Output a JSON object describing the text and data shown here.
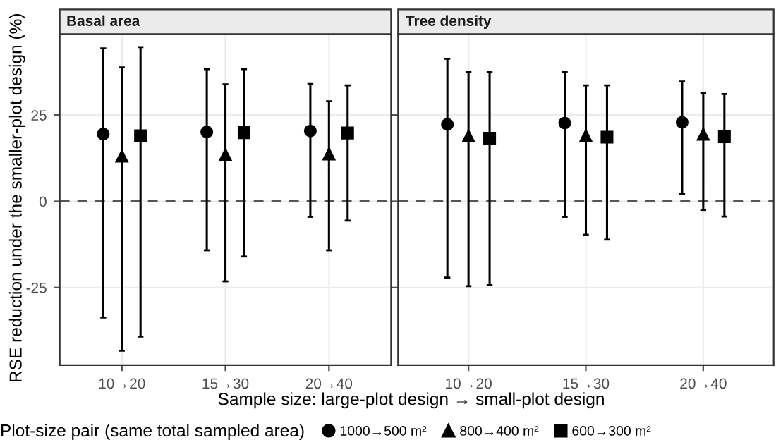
{
  "chart_data": [
    {
      "type": "scatter",
      "title": "Basal area",
      "ylabel": "RSE reduction under the smaller-plot design (%)",
      "xlabel": "Sample size: large-plot design → small-plot design",
      "legend_title": "Plot-size pair (same total sampled area)",
      "legend": "bottom",
      "grid": true,
      "categories": [
        "10→20",
        "15→30",
        "20→40"
      ],
      "ylim": [
        -47.5,
        48.4
      ],
      "yticks": [
        -25,
        0,
        25
      ],
      "ref_lines": [
        {
          "axis": "y",
          "value": 0,
          "line_style": "dashed",
          "color": "#555555"
        }
      ],
      "series": [
        {
          "name": "1000→500 m²",
          "color": "#000000",
          "marker": "circle",
          "values": [
            19.5,
            20.1,
            20.4
          ],
          "errors": [
            [
              -33.7,
              44.3
            ],
            [
              -14.2,
              38.3
            ],
            [
              -4.5,
              34.0
            ]
          ]
        },
        {
          "name": "800→400 m²",
          "color": "#000000",
          "marker": "triangle",
          "values": [
            13.1,
            13.5,
            13.7
          ],
          "errors": [
            [
              -43.3,
              38.8
            ],
            [
              -23.2,
              33.9
            ],
            [
              -14.2,
              29.0
            ]
          ]
        },
        {
          "name": "600→300 m²",
          "color": "#000000",
          "marker": "square",
          "values": [
            19.0,
            19.9,
            19.8
          ],
          "errors": [
            [
              -39.2,
              44.7
            ],
            [
              -16.0,
              38.3
            ],
            [
              -5.6,
              33.6
            ]
          ]
        }
      ]
    },
    {
      "type": "scatter",
      "title": "Tree density",
      "grid": true,
      "tick_labels": "x",
      "categories": [
        "10→20",
        "15→30",
        "20→40"
      ],
      "ylim": [
        -47.5,
        48.4
      ],
      "yticks": [
        -25,
        0,
        25
      ],
      "ref_lines": [
        {
          "axis": "y",
          "value": 0,
          "line_style": "dashed",
          "color": "#555555"
        }
      ],
      "series": [
        {
          "color": "#000000",
          "marker": "circle",
          "values": [
            22.3,
            22.7,
            22.9
          ],
          "errors": [
            [
              -22.1,
              41.3
            ],
            [
              -4.5,
              37.4
            ],
            [
              2.2,
              34.7
            ]
          ]
        },
        {
          "color": "#000000",
          "marker": "triangle",
          "values": [
            18.9,
            19.0,
            19.4
          ],
          "errors": [
            [
              -24.6,
              37.4
            ],
            [
              -9.7,
              33.6
            ],
            [
              -2.5,
              31.4
            ]
          ]
        },
        {
          "color": "#000000",
          "marker": "square",
          "values": [
            18.3,
            18.6,
            18.7
          ],
          "errors": [
            [
              -24.3,
              37.4
            ],
            [
              -11.1,
              33.6
            ],
            [
              -4.4,
              31.1
            ]
          ]
        }
      ]
    }
  ]
}
